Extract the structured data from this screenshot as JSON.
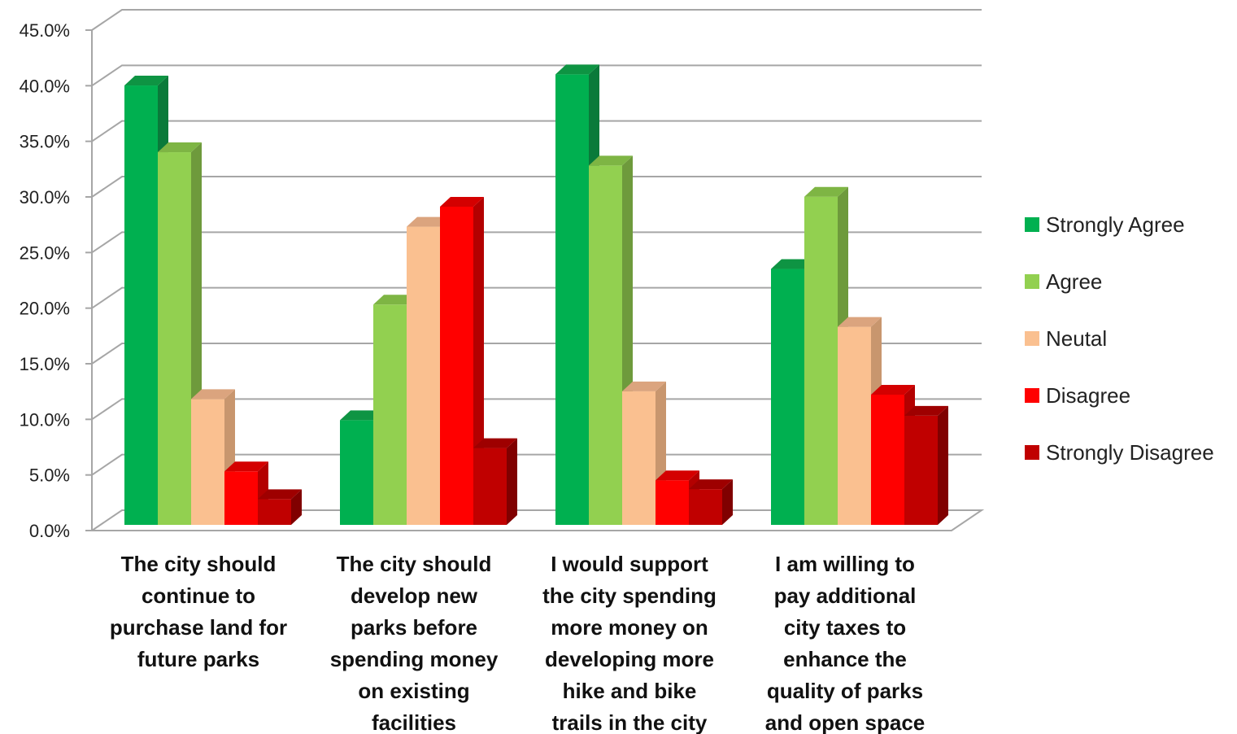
{
  "chart_data": {
    "type": "bar",
    "title": "",
    "xlabel": "",
    "ylabel": "",
    "ylim": [
      0,
      45
    ],
    "y_ticks": [
      "0.0%",
      "5.0%",
      "10.0%",
      "15.0%",
      "20.0%",
      "25.0%",
      "30.0%",
      "35.0%",
      "40.0%",
      "45.0%"
    ],
    "grid": true,
    "legend_position": "right",
    "categories": [
      [
        "The city should",
        "continue to",
        "purchase land for",
        "future parks"
      ],
      [
        "The city should",
        "develop new",
        "parks before",
        "spending money",
        "on existing",
        "facilities"
      ],
      [
        "I would support",
        "the city spending",
        "more money on",
        "developing more",
        "hike and bike",
        "trails in the city"
      ],
      [
        "I am willing to",
        "pay additional",
        "city taxes to",
        "enhance the",
        "quality of parks",
        "and open space"
      ]
    ],
    "series": [
      {
        "name": "Strongly Agree",
        "color": "#00b050",
        "side": "#0a7a3a",
        "top": "#0e9443",
        "values": [
          40.9,
          10.8,
          41.9,
          24.4
        ]
      },
      {
        "name": "Agree",
        "color": "#92d050",
        "side": "#6e9a3c",
        "top": "#7eb544",
        "values": [
          34.9,
          21.2,
          33.7,
          30.9
        ]
      },
      {
        "name": "Neutal",
        "color": "#fac090",
        "side": "#c8966e",
        "top": "#dba47e",
        "values": [
          12.7,
          28.2,
          13.4,
          19.2
        ]
      },
      {
        "name": "Disagree",
        "color": "#ff0000",
        "side": "#b30000",
        "top": "#d40000",
        "values": [
          6.2,
          30.0,
          5.4,
          13.1
        ]
      },
      {
        "name": "Strongly Disagree",
        "color": "#c00000",
        "side": "#800000",
        "top": "#9e0000",
        "values": [
          3.7,
          8.3,
          4.6,
          11.2
        ]
      }
    ]
  }
}
